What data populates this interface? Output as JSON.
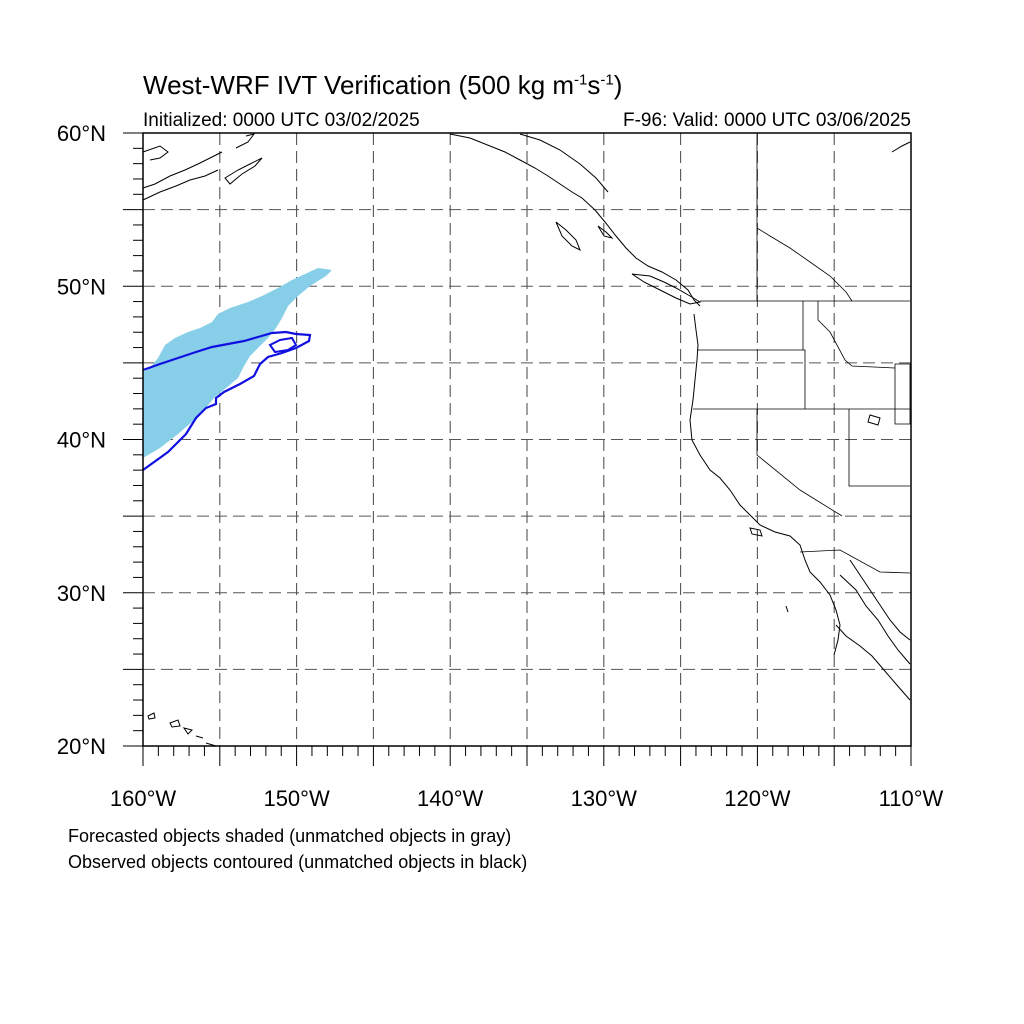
{
  "header": {
    "title_main": "West-WRF IVT Verification (500 kg m",
    "title_exp1": "-1",
    "title_mid": "s",
    "title_exp2": "-1",
    "title_end": ")",
    "initialized": "Initialized: 0000 UTC 03/02/2025",
    "valid": "F-96: Valid: 0000 UTC 03/06/2025"
  },
  "map": {
    "lon_labels": [
      "160°W",
      "150°W",
      "140°W",
      "130°W",
      "120°W",
      "110°W"
    ],
    "lat_labels": [
      "60°N",
      "50°N",
      "40°N",
      "30°N",
      "20°N"
    ],
    "lon_range": [
      -160,
      -110
    ],
    "lat_range": [
      20,
      60
    ],
    "grid_spacing_deg": 5,
    "gridlines": "dashed",
    "colors": {
      "forecast_fill": "#87cfe9",
      "observed_contour": "#1010e0",
      "coastline": "#000000",
      "grid": "#555555"
    }
  },
  "notes": {
    "line1": "Forecasted objects shaded (unmatched objects in gray)",
    "line2": "Observed objects contoured (unmatched objects in black)"
  }
}
